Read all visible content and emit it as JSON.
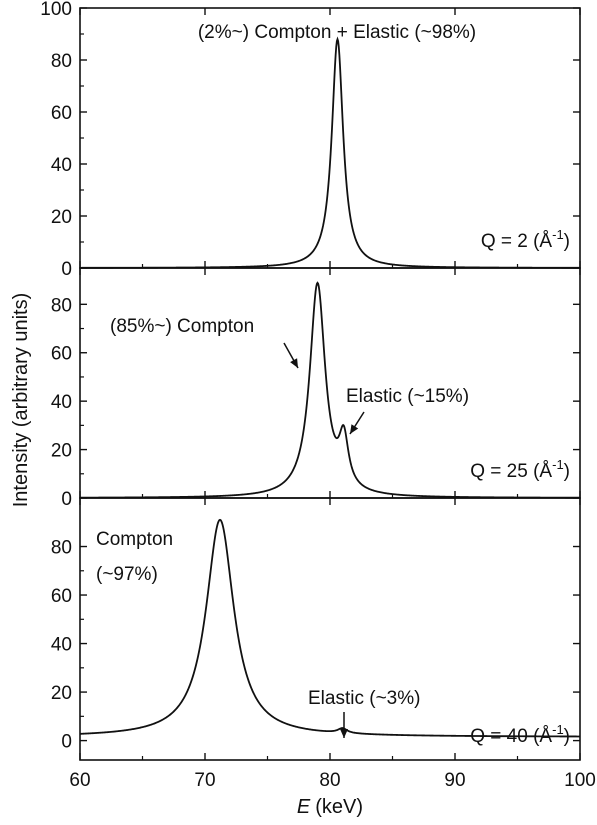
{
  "chart_data": {
    "type": "line",
    "shared_x": true,
    "xlabel_symbol": "E",
    "xlabel_unit": "(keV)",
    "ylabel": "Intensity (arbitrary units)",
    "xlim": [
      60,
      100
    ],
    "x_ticks": [
      60,
      70,
      80,
      90,
      100
    ],
    "grid": false,
    "panels": [
      {
        "q_label": "Q = 2 (Å",
        "q_exp": "-1",
        "q_close": ")",
        "ylim": [
          0,
          100
        ],
        "y_ticks": [
          0,
          20,
          40,
          60,
          80,
          100
        ],
        "peaks": [
          {
            "center": 80.6,
            "height": 88,
            "width": 0.55
          }
        ],
        "annotations": [
          {
            "text": "(2%~) Compton + Elastic (~98%)"
          }
        ]
      },
      {
        "q_label": "Q = 25 (Å",
        "q_exp": "-1",
        "q_close": ")",
        "ylim": [
          0,
          95
        ],
        "y_ticks": [
          0,
          20,
          40,
          60,
          80
        ],
        "peaks": [
          {
            "center": 79.0,
            "height": 88,
            "width": 0.75
          },
          {
            "center": 81.1,
            "height": 20,
            "width": 0.45
          }
        ],
        "annotations": [
          {
            "text": "(85%~) Compton"
          },
          {
            "text": "Elastic (~15%)"
          }
        ]
      },
      {
        "q_label": "Q = 40 (Å",
        "q_exp": "-1",
        "q_close": ")",
        "ylim": [
          -8,
          100
        ],
        "y_ticks": [
          0,
          20,
          40,
          60,
          80
        ],
        "peaks": [
          {
            "center": 71.2,
            "height": 91,
            "width": 1.35
          },
          {
            "center": 81.0,
            "height": 3.5,
            "width": 0.45
          }
        ],
        "baseline": 1.5,
        "annotations": [
          {
            "text": "Compton"
          },
          {
            "text": "(~97%)"
          },
          {
            "text": "Elastic (~3%)"
          }
        ]
      }
    ]
  }
}
